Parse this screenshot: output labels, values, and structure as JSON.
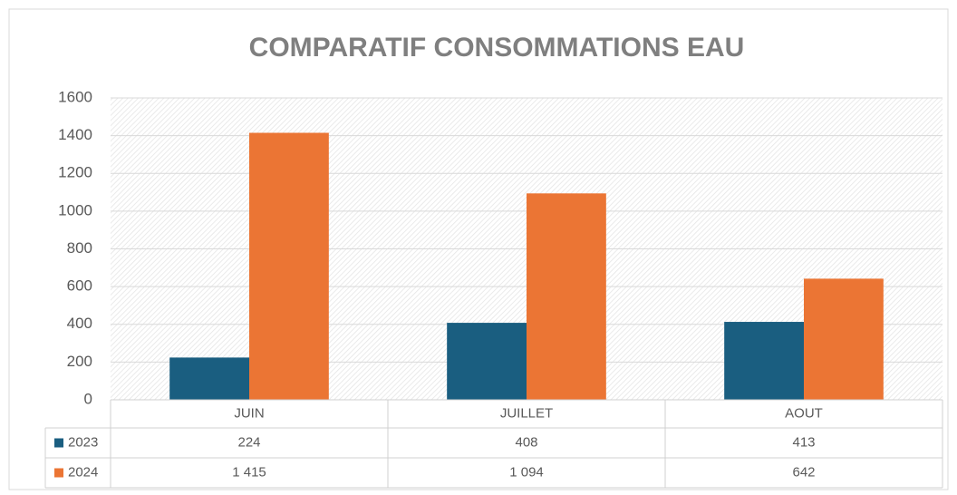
{
  "chart_data": {
    "type": "bar",
    "title": "COMPARATIF CONSOMMATIONS EAU",
    "categories": [
      "JUIN",
      "JUILLET",
      "AOUT"
    ],
    "series": [
      {
        "name": "2023",
        "color": "#1a5e80",
        "values": [
          224,
          408,
          413
        ]
      },
      {
        "name": "2024",
        "color": "#eb7534",
        "values": [
          1415,
          1094,
          642
        ],
        "value_labels": [
          "1 415",
          "1 094",
          "642"
        ]
      }
    ],
    "ylim": [
      0,
      1600
    ],
    "yticks": [
      0,
      200,
      400,
      600,
      800,
      1000,
      1200,
      1400,
      1600
    ],
    "grid": true
  }
}
